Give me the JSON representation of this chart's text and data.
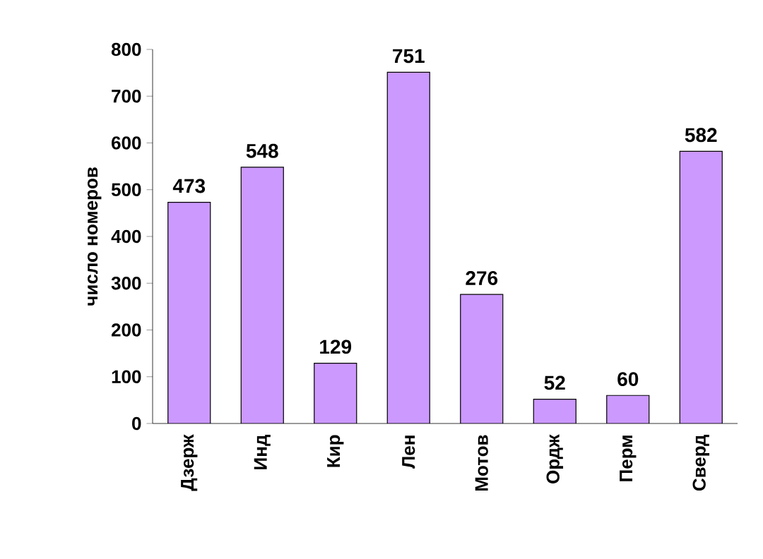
{
  "chart_data": {
    "type": "bar",
    "ylabel": "число номеров",
    "categories": [
      "Дзерж",
      "Инд",
      "Кир",
      "Лен",
      "Мотов",
      "Ордж",
      "Перм",
      "Сверд"
    ],
    "values": [
      473,
      548,
      129,
      751,
      276,
      52,
      60,
      582
    ],
    "color": "#cc99ff",
    "ylim": [
      0,
      800
    ],
    "yticks": [
      0,
      100,
      200,
      300,
      400,
      500,
      600,
      700,
      800
    ],
    "data_labels": true,
    "grid": false
  }
}
